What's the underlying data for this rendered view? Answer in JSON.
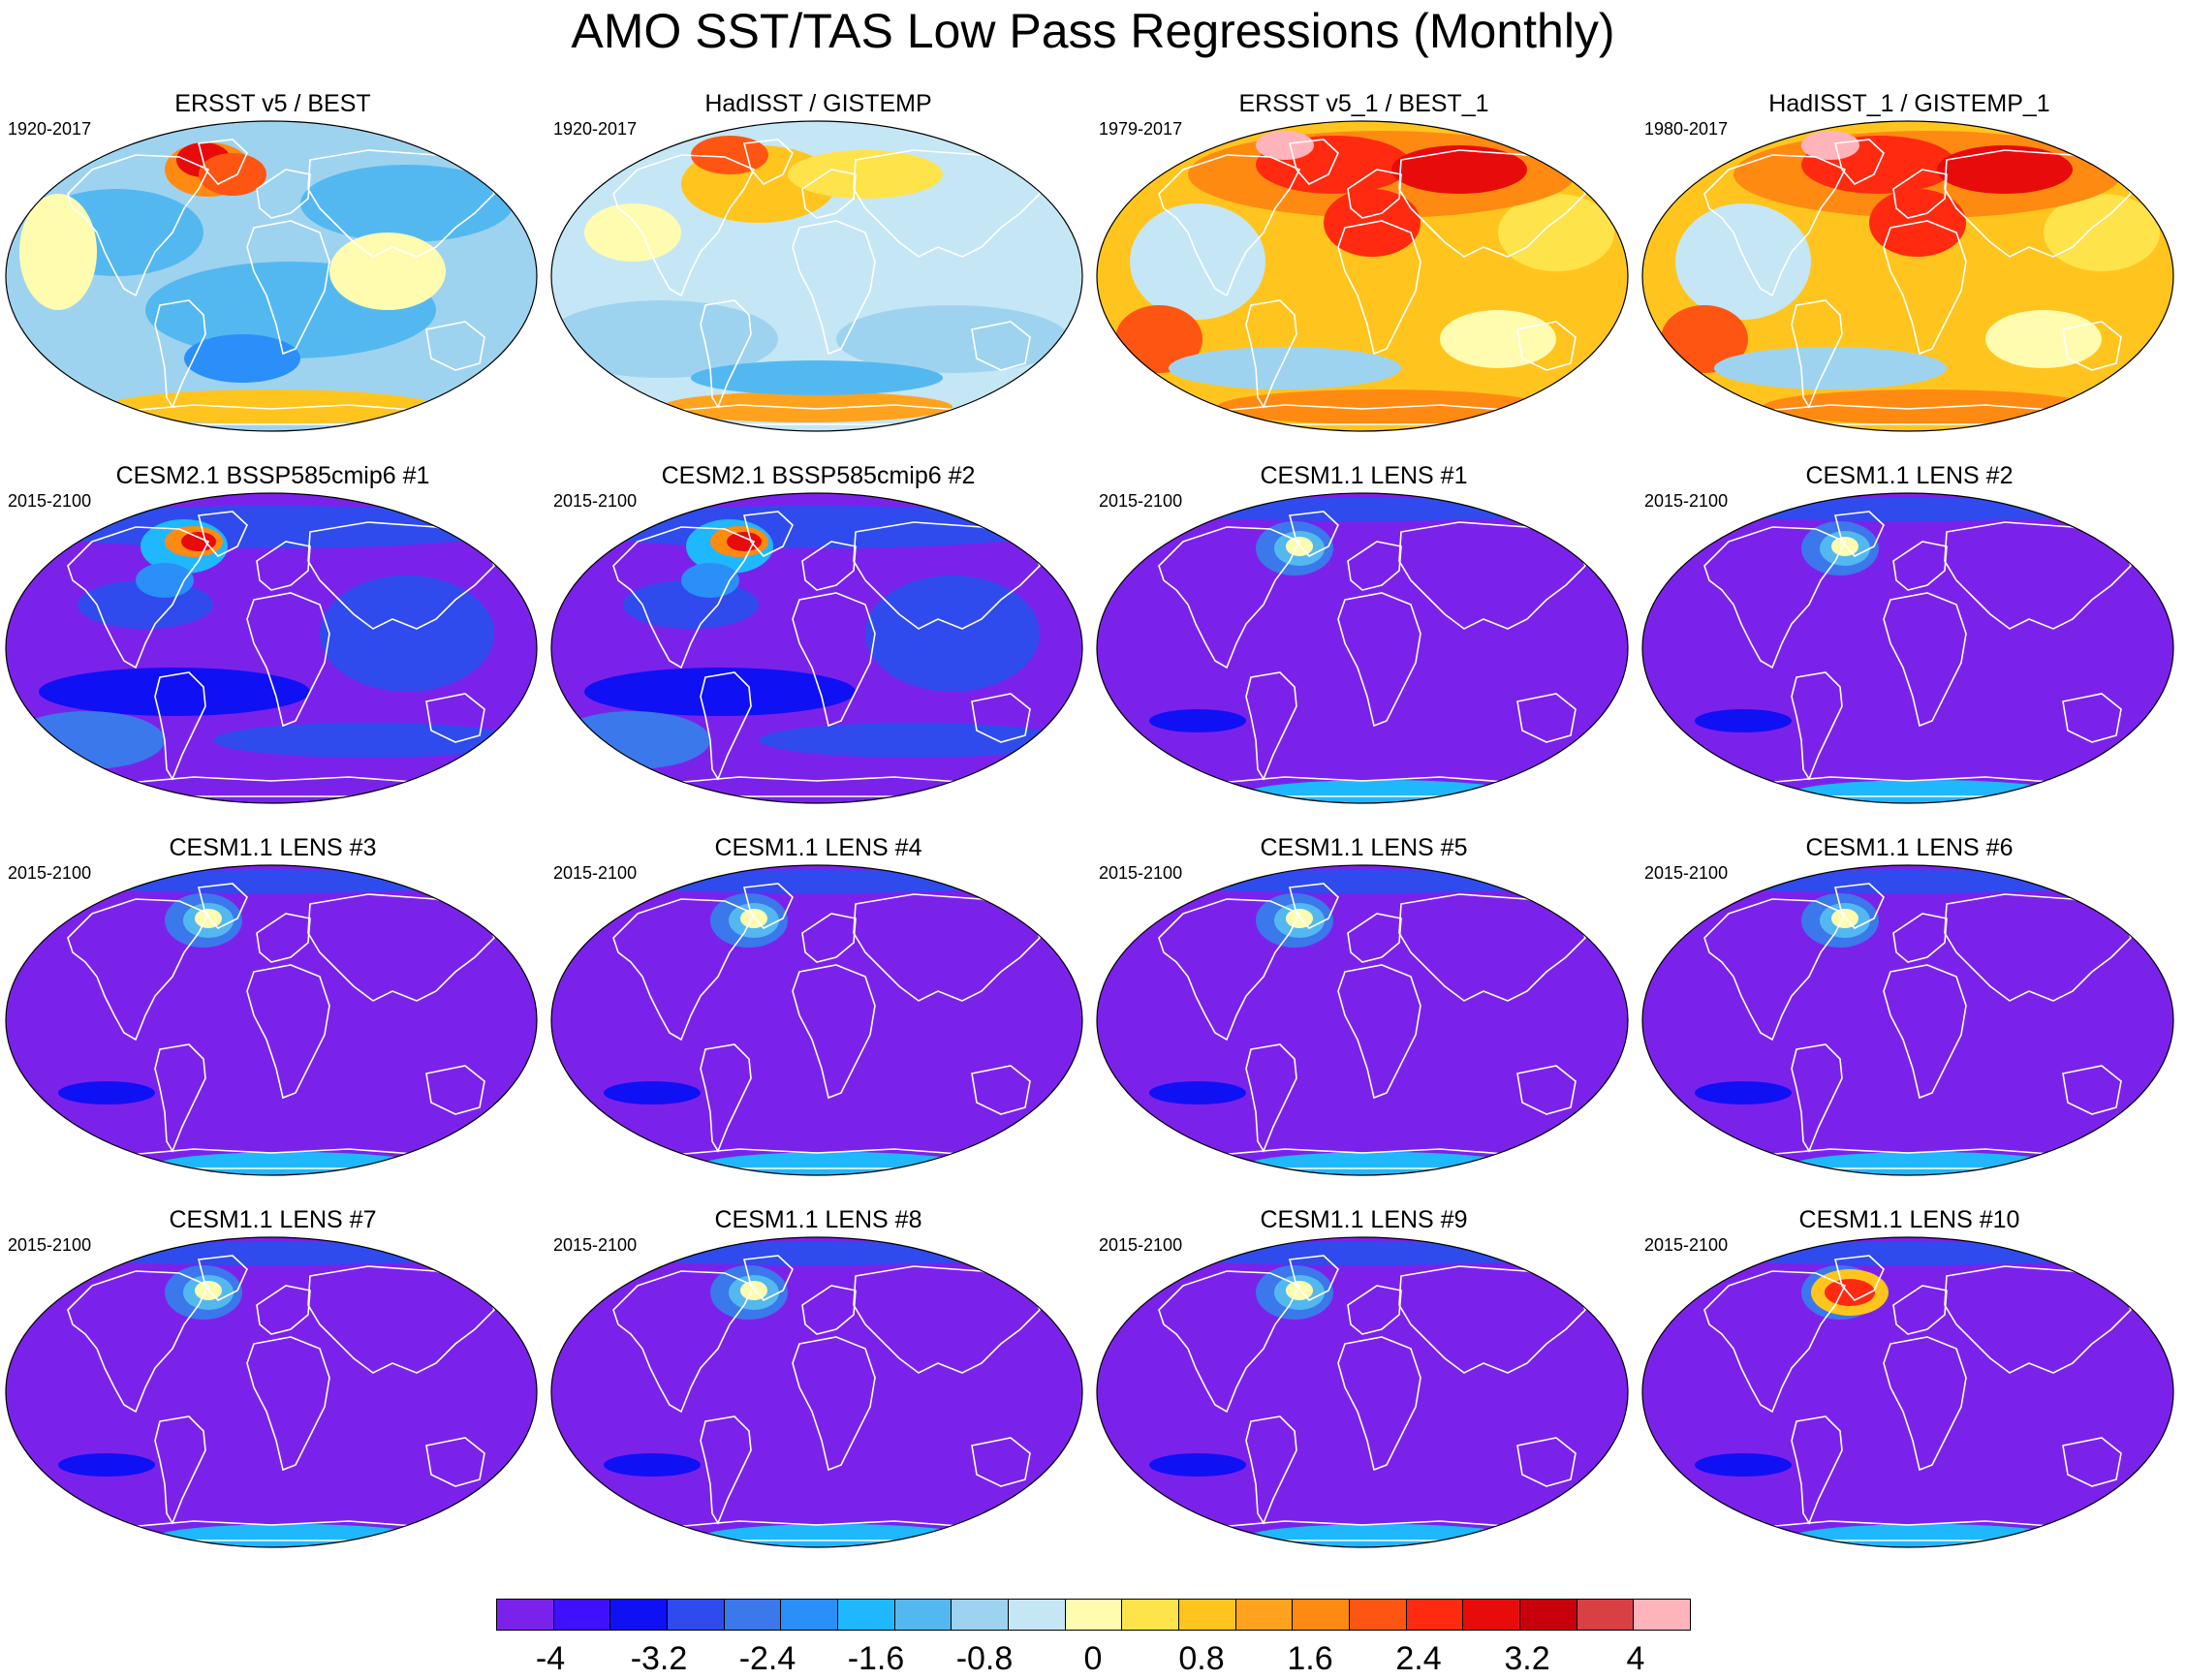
{
  "title": "AMO SST/TAS Low Pass Regressions (Monthly)",
  "colors": {
    "levels": [
      "#7b22ea",
      "#3f10ff",
      "#1010f5",
      "#2f4bee",
      "#3a78eb",
      "#2a8ff8",
      "#1fb8ff",
      "#54b8f0",
      "#9ed3ef",
      "#c5e6f5",
      "#fffcb0",
      "#ffe34b",
      "#ffc51e",
      "#ffa31e",
      "#ff8a12",
      "#ff5512",
      "#ff2a10",
      "#e80b0b",
      "#c8000c",
      "#d84046",
      "#ffb3bb"
    ],
    "coastline": "#ffffff",
    "map_border": "#000000"
  },
  "panels": [
    {
      "title": "ERSST v5 / BEST",
      "years": "1920-2017",
      "regime": "obs_cool"
    },
    {
      "title": "HadISST / GISTEMP",
      "years": "1920-2017",
      "regime": "obs_mixed"
    },
    {
      "title": "ERSST v5_1 / BEST_1",
      "years": "1979-2017",
      "regime": "obs_warm"
    },
    {
      "title": "HadISST_1 / GISTEMP_1",
      "years": "1980-2017",
      "regime": "obs_warm"
    },
    {
      "title": "CESM2.1 BSSP585cmip6 #1",
      "years": "2015-2100",
      "regime": "cesm2"
    },
    {
      "title": "CESM2.1 BSSP585cmip6 #2",
      "years": "2015-2100",
      "regime": "cesm2"
    },
    {
      "title": "CESM1.1 LENS #1",
      "years": "2015-2100",
      "regime": "lens"
    },
    {
      "title": "CESM1.1 LENS #2",
      "years": "2015-2100",
      "regime": "lens"
    },
    {
      "title": "CESM1.1 LENS #3",
      "years": "2015-2100",
      "regime": "lens"
    },
    {
      "title": "CESM1.1 LENS #4",
      "years": "2015-2100",
      "regime": "lens"
    },
    {
      "title": "CESM1.1 LENS #5",
      "years": "2015-2100",
      "regime": "lens"
    },
    {
      "title": "CESM1.1 LENS #6",
      "years": "2015-2100",
      "regime": "lens"
    },
    {
      "title": "CESM1.1 LENS #7",
      "years": "2015-2100",
      "regime": "lens"
    },
    {
      "title": "CESM1.1 LENS #8",
      "years": "2015-2100",
      "regime": "lens"
    },
    {
      "title": "CESM1.1 LENS #9",
      "years": "2015-2100",
      "regime": "lens"
    },
    {
      "title": "CESM1.1 LENS #10",
      "years": "2015-2100",
      "regime": "lens_hot"
    }
  ],
  "colorbar": {
    "min": -4.4,
    "max": 4.4,
    "labels": [
      "-4",
      "-3.2",
      "-2.4",
      "-1.6",
      "-0.8",
      "0",
      "0.8",
      "1.6",
      "2.4",
      "3.2",
      "4"
    ],
    "label_values": [
      -4,
      -3.2,
      -2.4,
      -1.6,
      -0.8,
      0,
      0.8,
      1.6,
      2.4,
      3.2,
      4
    ]
  }
}
